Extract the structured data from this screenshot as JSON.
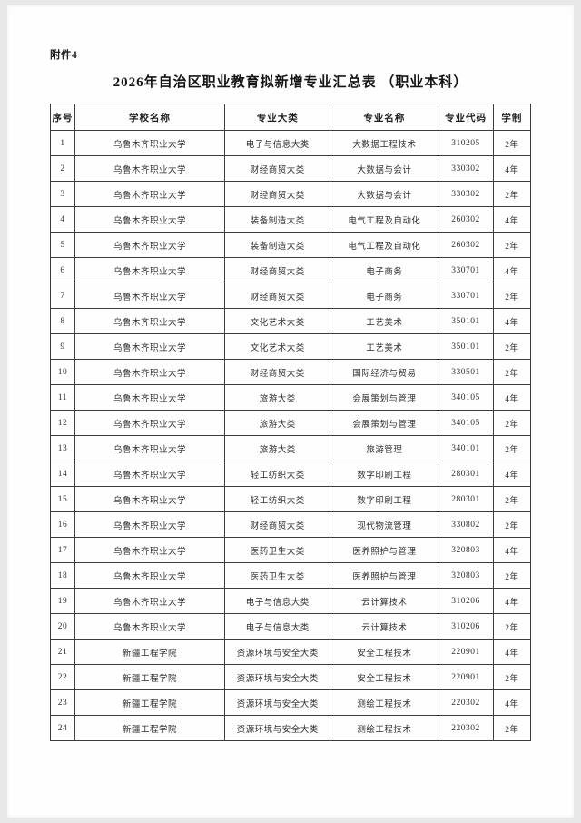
{
  "page": {
    "attachment_label": "附件4",
    "title": "2026年自治区职业教育拟新增专业汇总表 （职业本科）"
  },
  "colors": {
    "border": "#3c3c3c",
    "text": "#2e2e2e",
    "outer_background": "#e8e8e8",
    "page_background": "#fefefe"
  },
  "table": {
    "headers": [
      "序号",
      "学校名称",
      "专业大类",
      "专业名称",
      "专业代码",
      "学制"
    ],
    "rows": [
      [
        "1",
        "乌鲁木齐职业大学",
        "电子与信息大类",
        "大数据工程技术",
        "310205",
        "2年"
      ],
      [
        "2",
        "乌鲁木齐职业大学",
        "财经商贸大类",
        "大数据与会计",
        "330302",
        "4年"
      ],
      [
        "3",
        "乌鲁木齐职业大学",
        "财经商贸大类",
        "大数据与会计",
        "330302",
        "2年"
      ],
      [
        "4",
        "乌鲁木齐职业大学",
        "装备制造大类",
        "电气工程及自动化",
        "260302",
        "4年"
      ],
      [
        "5",
        "乌鲁木齐职业大学",
        "装备制造大类",
        "电气工程及自动化",
        "260302",
        "2年"
      ],
      [
        "6",
        "乌鲁木齐职业大学",
        "财经商贸大类",
        "电子商务",
        "330701",
        "4年"
      ],
      [
        "7",
        "乌鲁木齐职业大学",
        "财经商贸大类",
        "电子商务",
        "330701",
        "2年"
      ],
      [
        "8",
        "乌鲁木齐职业大学",
        "文化艺术大类",
        "工艺美术",
        "350101",
        "4年"
      ],
      [
        "9",
        "乌鲁木齐职业大学",
        "文化艺术大类",
        "工艺美术",
        "350101",
        "2年"
      ],
      [
        "10",
        "乌鲁木齐职业大学",
        "财经商贸大类",
        "国际经济与贸易",
        "330501",
        "2年"
      ],
      [
        "11",
        "乌鲁木齐职业大学",
        "旅游大类",
        "会展策划与管理",
        "340105",
        "4年"
      ],
      [
        "12",
        "乌鲁木齐职业大学",
        "旅游大类",
        "会展策划与管理",
        "340105",
        "2年"
      ],
      [
        "13",
        "乌鲁木齐职业大学",
        "旅游大类",
        "旅游管理",
        "340101",
        "2年"
      ],
      [
        "14",
        "乌鲁木齐职业大学",
        "轻工纺织大类",
        "数字印刷工程",
        "280301",
        "4年"
      ],
      [
        "15",
        "乌鲁木齐职业大学",
        "轻工纺织大类",
        "数字印刷工程",
        "280301",
        "2年"
      ],
      [
        "16",
        "乌鲁木齐职业大学",
        "财经商贸大类",
        "现代物流管理",
        "330802",
        "2年"
      ],
      [
        "17",
        "乌鲁木齐职业大学",
        "医药卫生大类",
        "医养照护与管理",
        "320803",
        "4年"
      ],
      [
        "18",
        "乌鲁木齐职业大学",
        "医药卫生大类",
        "医养照护与管理",
        "320803",
        "2年"
      ],
      [
        "19",
        "乌鲁木齐职业大学",
        "电子与信息大类",
        "云计算技术",
        "310206",
        "4年"
      ],
      [
        "20",
        "乌鲁木齐职业大学",
        "电子与信息大类",
        "云计算技术",
        "310206",
        "2年"
      ],
      [
        "21",
        "新疆工程学院",
        "资源环境与安全大类",
        "安全工程技术",
        "220901",
        "4年"
      ],
      [
        "22",
        "新疆工程学院",
        "资源环境与安全大类",
        "安全工程技术",
        "220901",
        "2年"
      ],
      [
        "23",
        "新疆工程学院",
        "资源环境与安全大类",
        "测绘工程技术",
        "220302",
        "4年"
      ],
      [
        "24",
        "新疆工程学院",
        "资源环境与安全大类",
        "测绘工程技术",
        "220302",
        "2年"
      ]
    ]
  }
}
